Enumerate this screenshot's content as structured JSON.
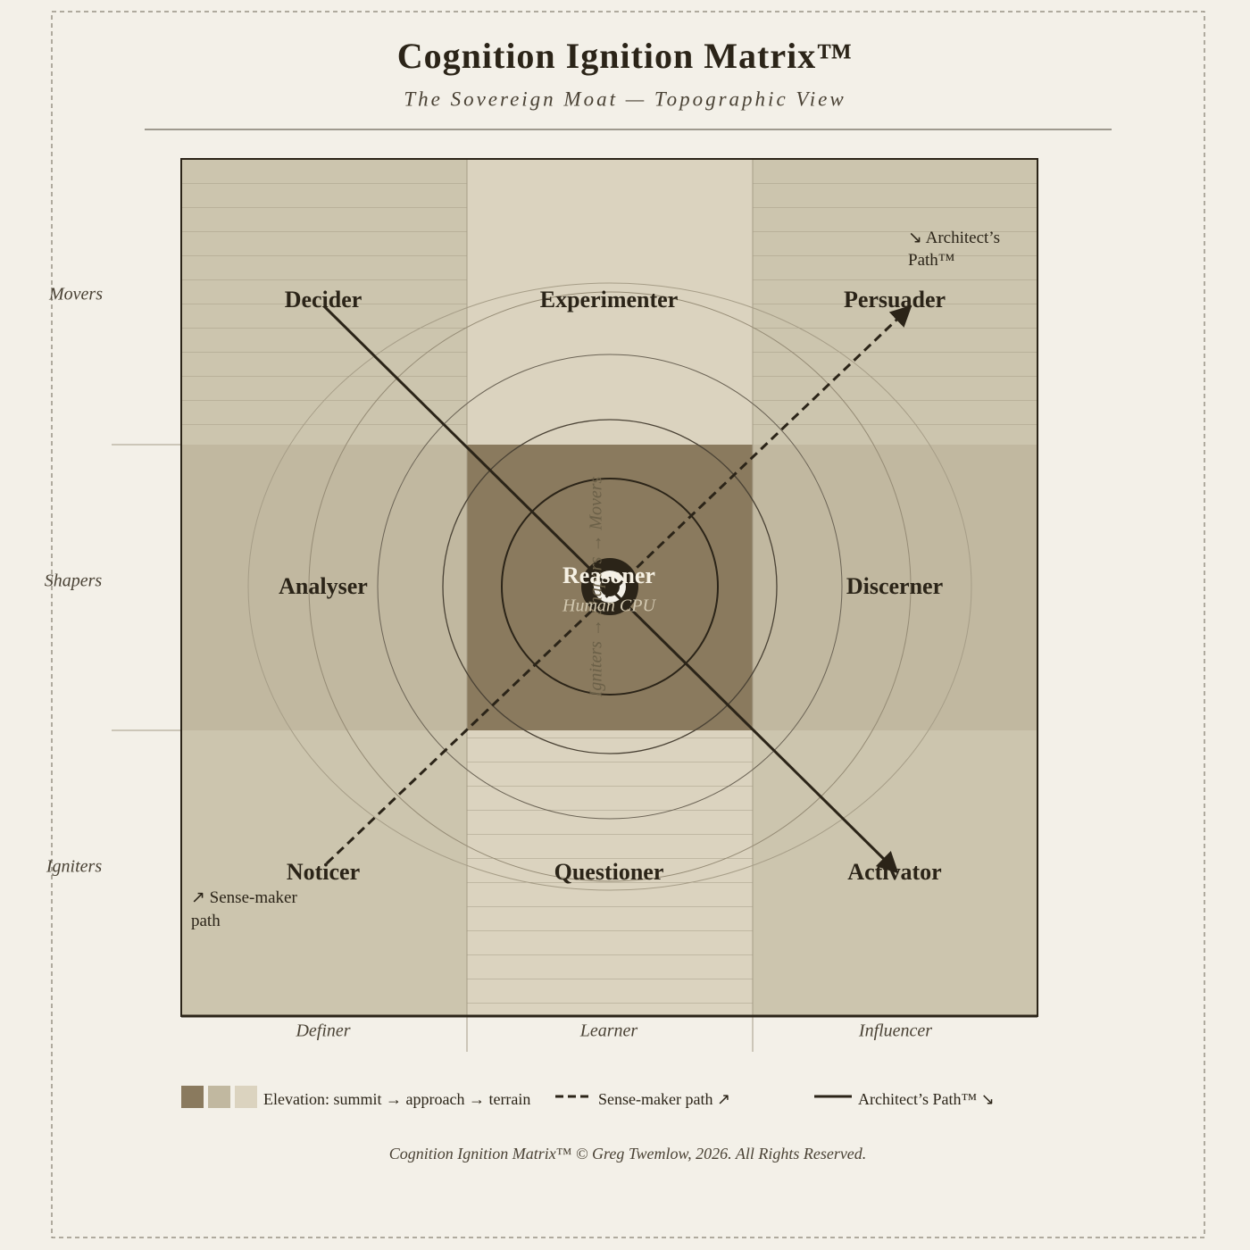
{
  "header": {
    "title": "Cognition Ignition Matrix™",
    "subtitle": "The Sovereign Moat — Topographic View"
  },
  "rows": [
    "Movers",
    "Shapers",
    "Igniters"
  ],
  "columns": [
    "Definer",
    "Learner",
    "Influencer"
  ],
  "cells": [
    [
      "Decider",
      "Experimenter",
      "Persuader"
    ],
    [
      "Analyser",
      "Reasoner",
      "Discerner"
    ],
    [
      "Noticer",
      "Questioner",
      "Activator"
    ]
  ],
  "center_subtitle": "Human CPU",
  "vertical_axis": "Igniters → Shapers → Movers",
  "annotations": {
    "architect": [
      "↘ Architect’s",
      "Path™"
    ],
    "sense_maker": [
      "↗ Sense-maker",
      "path"
    ]
  },
  "legend": {
    "elevation": "Elevation: summit → approach → terrain",
    "sense_maker": "Sense-maker path ↗",
    "architect": "Architect’s Path™ ↘"
  },
  "footer": "Cognition Ignition Matrix™ © Greg Twemlow, 2026. All Rights Reserved."
}
